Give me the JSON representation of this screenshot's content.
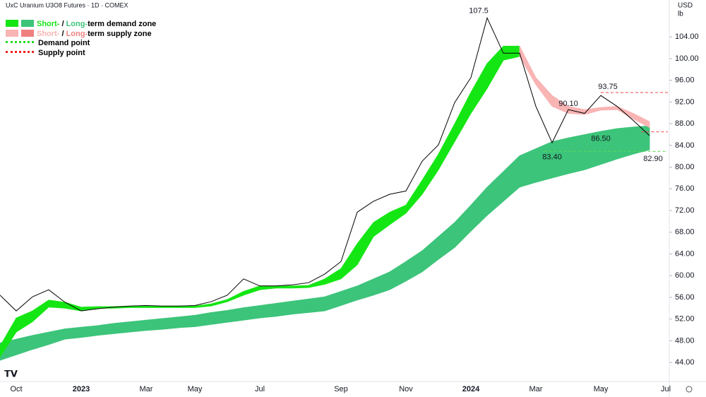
{
  "chart_data": {
    "type": "line",
    "title": "UxC Uranium U3O8 Futures · 1D · COMEX",
    "currency": "USD",
    "unit": "lb",
    "categories": [
      null,
      "Oct",
      null,
      null,
      null,
      "2023",
      null,
      null,
      null,
      "Mar",
      null,
      null,
      "May",
      null,
      null,
      null,
      "Jul",
      null,
      null,
      null,
      null,
      "Sep",
      null,
      null,
      null,
      "Nov",
      null,
      null,
      null,
      "2024",
      null,
      null,
      null,
      "Mar",
      null,
      null,
      null,
      "May",
      null,
      null,
      null,
      "Jul"
    ],
    "price": {
      "color": "#000000",
      "values": [
        56.4,
        53.5,
        56.1,
        57.4,
        55.1,
        53.5,
        53.9,
        54.2,
        54.4,
        54.5,
        54.4,
        54.4,
        54.5,
        55.2,
        56.4,
        59.4,
        58.1,
        58.1,
        58.3,
        58.7,
        60.3,
        62.6,
        71.7,
        73.7,
        75.0,
        75.6,
        81.1,
        84.1,
        91.9,
        96.5,
        107.5,
        101.0,
        101.0,
        91.2,
        84.5,
        90.6,
        89.9,
        93.2,
        91.2,
        88.6,
        85.8,
        null
      ]
    },
    "zones": [
      {
        "color": "#3cc47a",
        "high": [
          47.6,
          48.3,
          49.0,
          49.6,
          50.2,
          50.5,
          50.8,
          51.2,
          51.5,
          51.8,
          52.1,
          52.4,
          52.7,
          53.2,
          53.6,
          54.1,
          54.5,
          54.9,
          55.3,
          55.7,
          56.1,
          57.1,
          58.1,
          59.4,
          60.7,
          62.6,
          64.6,
          67.2,
          69.8,
          73.0,
          76.3,
          79.2,
          82.1,
          83.4,
          84.7,
          85.4,
          86.0,
          86.6,
          87.1,
          87.4,
          87.6,
          null
        ],
        "low": [
          44.4,
          45.4,
          46.4,
          47.3,
          48.3,
          48.6,
          49.0,
          49.3,
          49.6,
          49.9,
          50.1,
          50.4,
          50.6,
          51.0,
          51.4,
          51.8,
          52.2,
          52.5,
          52.9,
          53.2,
          53.5,
          54.5,
          55.5,
          56.4,
          57.4,
          59.0,
          60.7,
          63.0,
          65.2,
          68.2,
          71.1,
          73.7,
          76.3,
          77.2,
          78.0,
          78.8,
          79.5,
          80.5,
          81.5,
          82.4,
          83.2,
          null
        ]
      },
      {
        "color": "#14e614",
        "high": [
          47.0,
          52.2,
          53.5,
          55.5,
          55.1,
          54.2,
          54.3,
          54.3,
          54.4,
          54.4,
          54.4,
          54.4,
          54.4,
          54.8,
          55.6,
          57.1,
          58.1,
          58.1,
          58.1,
          58.2,
          59.4,
          61.3,
          65.9,
          69.8,
          71.7,
          73.0,
          77.6,
          82.4,
          88.0,
          93.8,
          99.1,
          102.3,
          102.3,
          null,
          null,
          null,
          null,
          null,
          null,
          null,
          null,
          null
        ],
        "low": [
          45.0,
          49.6,
          51.5,
          54.2,
          54.0,
          53.5,
          54.0,
          54.0,
          54.1,
          54.1,
          54.1,
          54.1,
          54.1,
          54.4,
          55.2,
          56.4,
          57.4,
          57.7,
          57.7,
          57.8,
          58.4,
          59.4,
          62.0,
          67.2,
          69.4,
          71.5,
          75.0,
          79.5,
          84.7,
          89.9,
          94.5,
          99.7,
          100.4,
          null,
          null,
          null,
          null,
          null,
          null,
          null,
          null,
          null
        ]
      },
      {
        "color": "#f9b4b4",
        "high": [
          null,
          null,
          null,
          null,
          null,
          null,
          null,
          null,
          null,
          null,
          null,
          null,
          null,
          null,
          null,
          null,
          null,
          null,
          null,
          null,
          null,
          null,
          null,
          null,
          null,
          null,
          null,
          null,
          null,
          null,
          null,
          null,
          102.3,
          96.5,
          93.2,
          91.2,
          90.6,
          91.0,
          91.2,
          89.9,
          88.4,
          null
        ],
        "low": [
          null,
          null,
          null,
          null,
          null,
          null,
          null,
          null,
          null,
          null,
          null,
          null,
          null,
          null,
          null,
          null,
          null,
          null,
          null,
          null,
          null,
          null,
          null,
          null,
          null,
          null,
          null,
          null,
          null,
          null,
          null,
          null,
          100.4,
          95.2,
          91.2,
          89.9,
          89.7,
          90.5,
          90.6,
          88.9,
          87.3,
          null
        ]
      }
    ],
    "annotations": [
      {
        "value": 107.5,
        "label": "107.5"
      },
      {
        "value": 93.75,
        "label": "93.75",
        "line_color": "#f04545"
      },
      {
        "value": 90.1,
        "label": "90.10"
      },
      {
        "value": 86.5,
        "label": "86.50",
        "line_color": "#f04545"
      },
      {
        "value": 83.4,
        "label": "83.40"
      },
      {
        "value": 82.9,
        "label": "82.90",
        "line_color": "#5ad85a"
      }
    ],
    "legend": [
      {
        "short": "Short-",
        "separator": " / ",
        "long": "Long-",
        "text": "term demand zone",
        "colors": [
          "#14e614",
          "#3cc47a"
        ]
      },
      {
        "short": "Short-",
        "separator": " / ",
        "long": "Long-",
        "text": "term supply zone",
        "colors": [
          "#f9b4b4",
          "#f08080"
        ]
      },
      {
        "text": "Demand point",
        "color": "#22dd22"
      },
      {
        "text": "Supply point",
        "color": "#ee2222"
      }
    ],
    "ylim": [
      40.5,
      110.8
    ],
    "yticks": [
      {
        "value": 44,
        "label": "44.00"
      },
      {
        "value": 48,
        "label": "48.00"
      },
      {
        "value": 52,
        "label": "52.00"
      },
      {
        "value": 56,
        "label": "56.00"
      },
      {
        "value": 60,
        "label": "60.00"
      },
      {
        "value": 64,
        "label": "64.00"
      },
      {
        "value": 68,
        "label": "68.00"
      },
      {
        "value": 72,
        "label": "72.00"
      },
      {
        "value": 76,
        "label": "76.00"
      },
      {
        "value": 80,
        "label": "80.00"
      },
      {
        "value": 84,
        "label": "84.00"
      },
      {
        "value": 88,
        "label": "88.00"
      },
      {
        "value": 92,
        "label": "92.00"
      },
      {
        "value": 96,
        "label": "96.00"
      },
      {
        "value": 100,
        "label": "100.00"
      },
      {
        "value": 104,
        "label": "104.00"
      }
    ]
  }
}
